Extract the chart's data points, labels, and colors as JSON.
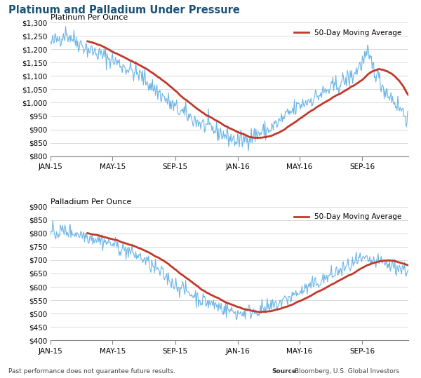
{
  "title": "Platinum and Palladium Under Pressure",
  "title_color": "#1a5276",
  "subtitle_platinum": "Platinum Per Ounce",
  "subtitle_palladium": "Palladium Per Ounce",
  "platinum_ylim": [
    800,
    1300
  ],
  "palladium_ylim": [
    400,
    900
  ],
  "platinum_yticks": [
    800,
    850,
    900,
    950,
    1000,
    1050,
    1100,
    1150,
    1200,
    1250,
    1300
  ],
  "palladium_yticks": [
    400,
    450,
    500,
    550,
    600,
    650,
    700,
    750,
    800,
    850,
    900
  ],
  "xtick_labels": [
    "JAN-15",
    "MAY-15",
    "SEP-15",
    "JAN-16",
    "MAY-16",
    "SEP-16"
  ],
  "line_color": "#5dade2",
  "ma_color": "#c0392b",
  "legend_label": "50-Day Moving Average",
  "footnote_left": "Past performance does not guarantee future results.",
  "footnote_right": "Bloomberg, U.S. Global Investors",
  "footnote_right_bold": "Source:",
  "background_color": "#ffffff",
  "grid_color": "#cccccc"
}
